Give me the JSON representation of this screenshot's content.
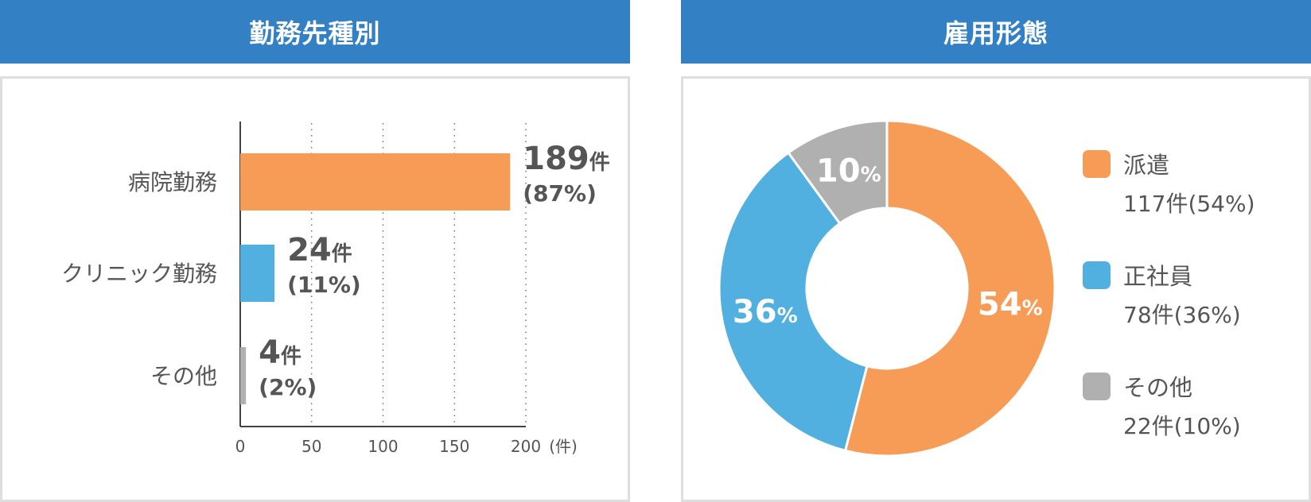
{
  "charts": {
    "workplace": {
      "header": "勤務先種別",
      "unit": "(件)",
      "bar_value_unit": "件"
    },
    "employment": {
      "header": "雇用形態",
      "pct_unit": "%",
      "legend_unit": "件"
    }
  },
  "chart_data": [
    {
      "type": "bar",
      "orientation": "horizontal",
      "title": "勤務先種別",
      "xlabel": "(件)",
      "xlim": [
        0,
        200
      ],
      "xticks": [
        0,
        50,
        100,
        150,
        200
      ],
      "grid": "vertical-dotted",
      "categories": [
        "病院勤務",
        "クリニック勤務",
        "その他"
      ],
      "values": [
        189,
        24,
        4
      ],
      "percent_labels": [
        "(87%)",
        "(11%)",
        "(2%)"
      ],
      "colors": [
        "#f69c57",
        "#52b0e1",
        "#b0b0b0"
      ]
    },
    {
      "type": "pie",
      "style": "donut",
      "title": "雇用形態",
      "legend": "right",
      "labels": [
        "派遣",
        "正社員",
        "その他"
      ],
      "counts": [
        117,
        78,
        22
      ],
      "values": [
        54,
        36,
        10
      ],
      "legend_texts": [
        "117件(54%)",
        "78件(36%)",
        "22件(10%)"
      ],
      "colors": [
        "#f69c57",
        "#52b0e1",
        "#b0b0b0"
      ]
    }
  ]
}
